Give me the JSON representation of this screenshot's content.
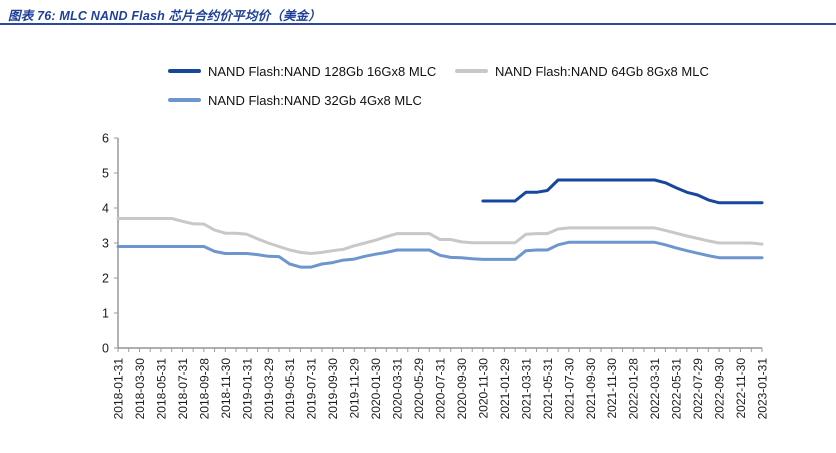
{
  "header": {
    "title": "图表 76:  MLC NAND Flash 芯片合约价平均价（美金）"
  },
  "colors": {
    "title": "#1e3f9b",
    "rule": "#2c4a9c",
    "axis": "#7f7f7f",
    "tick": "#9a9a9a",
    "text": "#1a1a1a"
  },
  "chart_data": {
    "type": "line",
    "title": "MLC NAND Flash 芯片合约价平均价（美金）",
    "xlabel": "",
    "ylabel": "",
    "ylim": [
      0,
      6
    ],
    "yticks": [
      0,
      1,
      2,
      3,
      4,
      5,
      6
    ],
    "grid": false,
    "legend_position": "top",
    "x_unit": "month",
    "x_start": "2018-01",
    "x_end": "2023-01",
    "x_tick_label_every_n_months": 2,
    "x_tick_labels": [
      "2018-01-31",
      "2018-03-30",
      "2018-05-31",
      "2018-07-31",
      "2018-09-28",
      "2018-11-30",
      "2019-01-31",
      "2019-03-29",
      "2019-05-31",
      "2019-07-31",
      "2019-09-30",
      "2019-11-29",
      "2020-01-30",
      "2020-03-31",
      "2020-05-29",
      "2020-07-31",
      "2020-09-30",
      "2020-11-30",
      "2021-01-29",
      "2021-03-31",
      "2021-05-31",
      "2021-07-30",
      "2021-09-30",
      "2021-11-30",
      "2022-01-28",
      "2022-03-31",
      "2022-05-31",
      "2022-07-29",
      "2022-09-30",
      "2022-11-30",
      "2023-01-31"
    ],
    "series": [
      {
        "name": "NAND Flash:NAND 128Gb 16Gx8 MLC",
        "color": "#17479d",
        "start_month_index": 34,
        "values": [
          4.2,
          4.2,
          4.2,
          4.2,
          4.45,
          4.45,
          4.5,
          4.8,
          4.8,
          4.8,
          4.8,
          4.8,
          4.8,
          4.8,
          4.8,
          4.8,
          4.8,
          4.72,
          4.58,
          4.45,
          4.37,
          4.23,
          4.15,
          4.15,
          4.15,
          4.15,
          4.15
        ]
      },
      {
        "name": "NAND Flash:NAND 64Gb 8Gx8 MLC",
        "color": "#c8c8c8",
        "start_month_index": 0,
        "values": [
          3.7,
          3.7,
          3.7,
          3.7,
          3.7,
          3.7,
          3.62,
          3.55,
          3.54,
          3.37,
          3.28,
          3.28,
          3.25,
          3.12,
          3.0,
          2.9,
          2.8,
          2.73,
          2.7,
          2.73,
          2.78,
          2.82,
          2.92,
          3.0,
          3.08,
          3.18,
          3.27,
          3.27,
          3.27,
          3.27,
          3.1,
          3.1,
          3.03,
          3.01,
          3.01,
          3.01,
          3.01,
          3.01,
          3.25,
          3.27,
          3.27,
          3.4,
          3.43,
          3.43,
          3.43,
          3.43,
          3.43,
          3.43,
          3.43,
          3.43,
          3.43,
          3.36,
          3.28,
          3.2,
          3.13,
          3.06,
          3.0,
          3.0,
          3.0,
          3.0,
          2.97
        ]
      },
      {
        "name": "NAND Flash:NAND 32Gb 4Gx8 MLC",
        "color": "#6d96cf",
        "start_month_index": 0,
        "values": [
          2.9,
          2.9,
          2.9,
          2.9,
          2.9,
          2.9,
          2.9,
          2.9,
          2.9,
          2.76,
          2.7,
          2.7,
          2.7,
          2.67,
          2.62,
          2.61,
          2.4,
          2.31,
          2.31,
          2.4,
          2.44,
          2.51,
          2.54,
          2.62,
          2.68,
          2.73,
          2.8,
          2.8,
          2.8,
          2.8,
          2.65,
          2.59,
          2.58,
          2.55,
          2.53,
          2.53,
          2.53,
          2.53,
          2.78,
          2.8,
          2.8,
          2.95,
          3.02,
          3.02,
          3.02,
          3.02,
          3.02,
          3.02,
          3.02,
          3.02,
          3.02,
          2.95,
          2.86,
          2.78,
          2.71,
          2.64,
          2.58,
          2.58,
          2.58,
          2.58,
          2.58
        ]
      }
    ]
  }
}
